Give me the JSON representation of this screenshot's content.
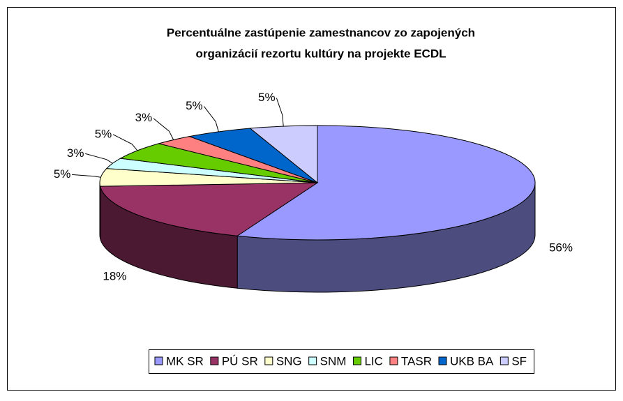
{
  "chart_data": {
    "type": "pie3d",
    "title": [
      "Percentuálne zastúpenie zamestnancov zo zapojených",
      "organizácií rezortu kultúry na projekte ECDL"
    ],
    "categories": [
      "MK SR",
      "PÚ SR",
      "SNG",
      "SNM",
      "LIC",
      "TASR",
      "UKB BA",
      "SF"
    ],
    "values": [
      56,
      18,
      5,
      3,
      5,
      3,
      5,
      5
    ],
    "value_labels": [
      "56%",
      "18%",
      "5%",
      "3%",
      "5%",
      "3%",
      "5%",
      "5%"
    ],
    "colors": [
      "#9999ff",
      "#993366",
      "#ffffcc",
      "#ccffff",
      "#66cc00",
      "#ff8080",
      "#0066cc",
      "#ccccff"
    ],
    "legend": "bottom"
  }
}
